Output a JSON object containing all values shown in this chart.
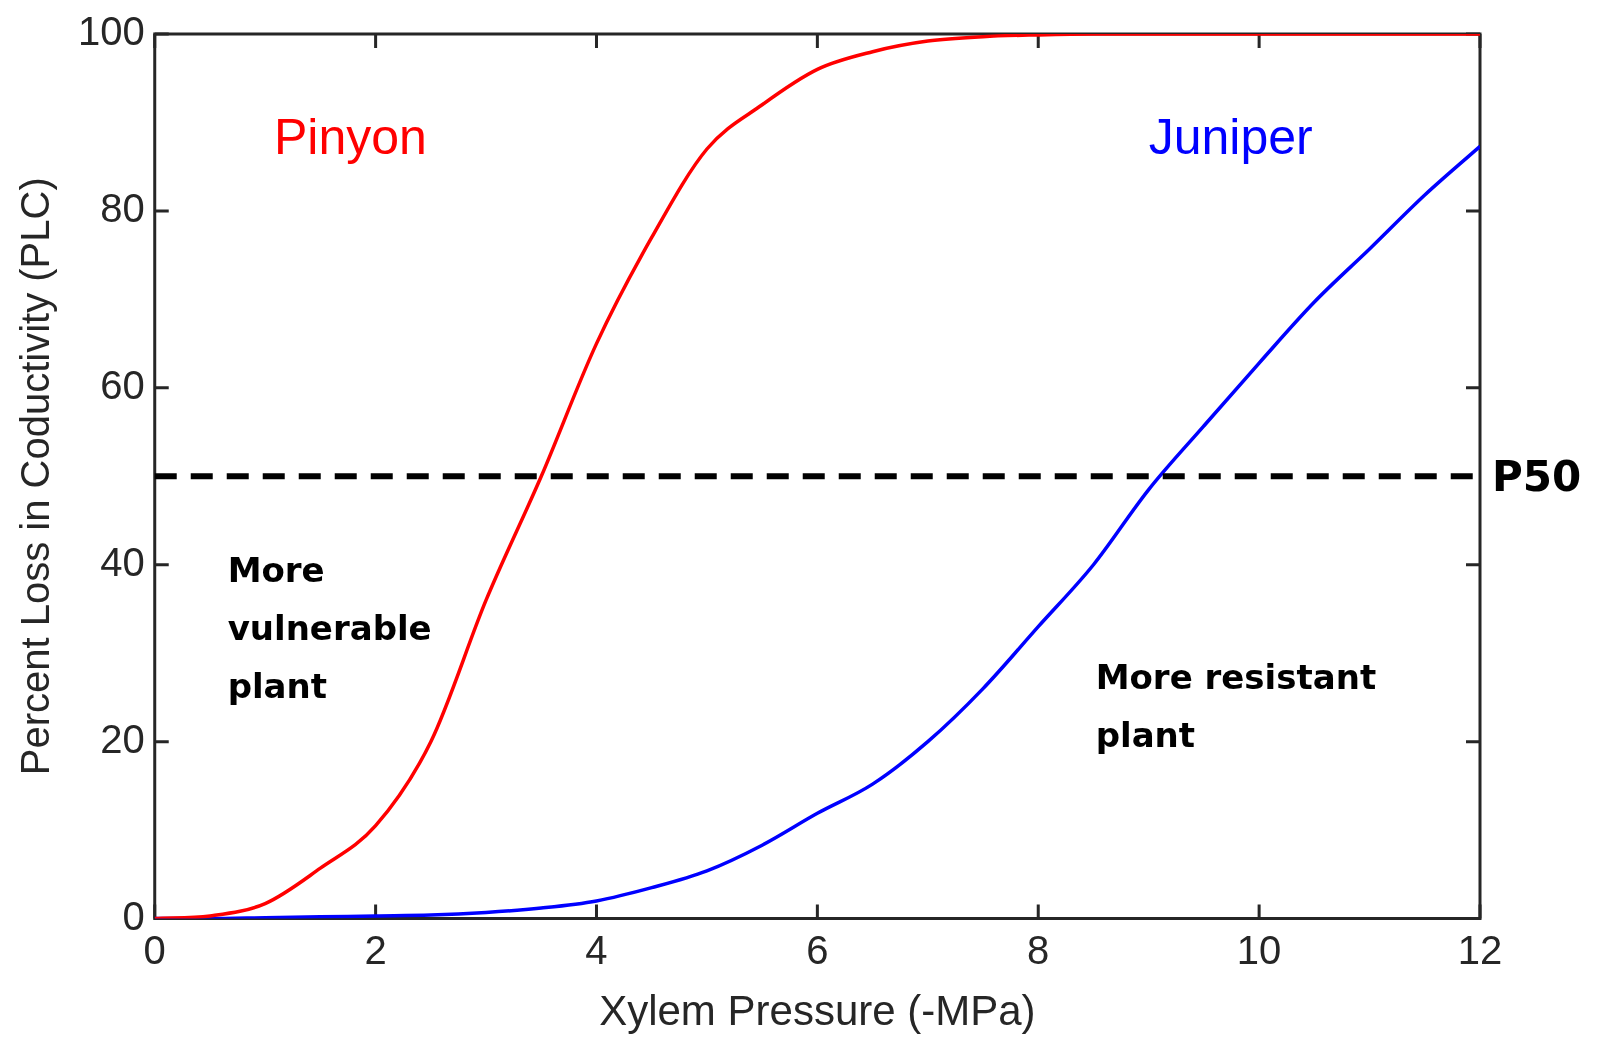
{
  "chart_data": {
    "type": "line",
    "xlabel": "Xylem Pressure (-MPa)",
    "ylabel": "Percent Loss in Coductivity (PLC)",
    "x": [
      0,
      0.5,
      1,
      1.5,
      2,
      2.5,
      3,
      3.5,
      4,
      4.5,
      5,
      5.5,
      6,
      6.5,
      7,
      7.5,
      8,
      8.5,
      9,
      9.5,
      10,
      10.5,
      11,
      11.5,
      12
    ],
    "series": [
      {
        "name": "Pinyon",
        "color": "#ff0000",
        "values": [
          0,
          0.3,
          1.7,
          5.7,
          10.5,
          20,
          36,
          50,
          65,
          77,
          87,
          92,
          96,
          98,
          99.2,
          99.7,
          99.9,
          100,
          100,
          100,
          100,
          100,
          100,
          100,
          100
        ]
      },
      {
        "name": "Juniper",
        "color": "#0000ff",
        "values": [
          0,
          0,
          0.1,
          0.2,
          0.3,
          0.4,
          0.7,
          1.2,
          2,
          3.5,
          5.4,
          8.3,
          11.9,
          15.2,
          20,
          26,
          33,
          40,
          48.5,
          55.7,
          62.8,
          69.7,
          75.7,
          81.8,
          87.3
        ]
      }
    ],
    "xlim": [
      0,
      12
    ],
    "xticks": [
      0,
      2,
      4,
      6,
      8,
      10,
      12
    ],
    "ylim": [
      0,
      100
    ],
    "yticks": [
      0,
      20,
      40,
      60,
      80,
      100
    ],
    "grid": false,
    "legend": false,
    "marker": "none",
    "line_style": "solid",
    "ref_lines": [
      {
        "axis": "y",
        "value": 50,
        "label": "P50",
        "color": "#000000",
        "line_style": "dashed"
      }
    ],
    "annotations": [
      "More vulnerable plant",
      "More resistant plant"
    ]
  }
}
